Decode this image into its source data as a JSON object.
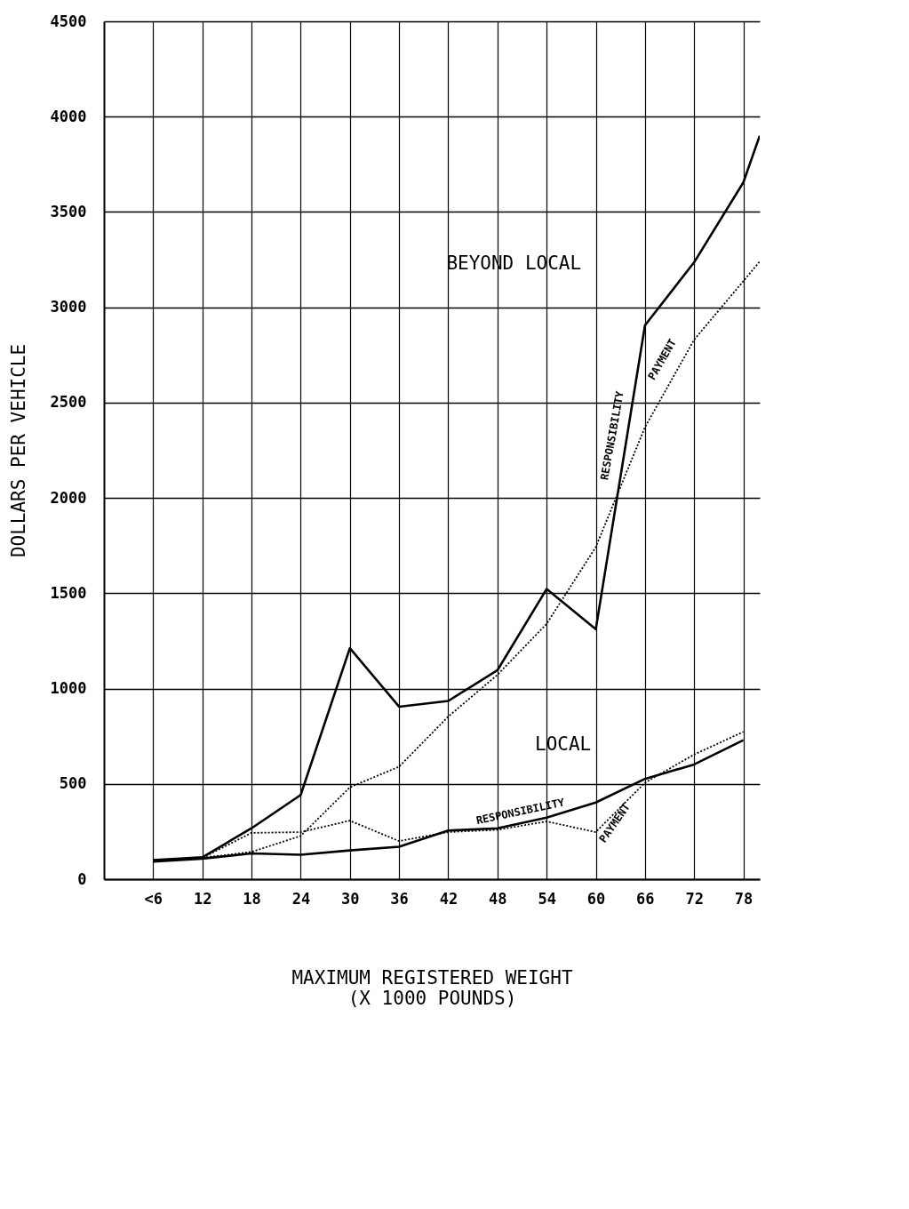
{
  "chart_data": {
    "type": "line",
    "xlabel": "MAXIMUM REGISTERED WEIGHT\n(X 1000 POUNDS)",
    "ylabel": "DOLLARS PER VEHICLE",
    "x": [
      6,
      12,
      18,
      24,
      30,
      36,
      42,
      48,
      54,
      60,
      66,
      72,
      78,
      80
    ],
    "series": [
      {
        "color": "#000000",
        "line_style": "solid",
        "values": [
          100,
          115,
          267,
          442,
          1212,
          905,
          935,
          1096,
          1522,
          1311,
          2905,
          3236,
          3655,
          3900
        ]
      },
      {
        "color": "#000000",
        "line_style": "dotted",
        "values": [
          100,
          112,
          143,
          227,
          482,
          590,
          853,
          1072,
          1339,
          1742,
          2371,
          2830,
          3137,
          3240
        ]
      },
      {
        "color": "#000000",
        "line_style": "solid",
        "x": [
          6,
          12,
          18,
          24,
          30,
          36,
          42,
          48,
          54,
          60,
          66,
          72,
          78
        ],
        "values": [
          92,
          108,
          135,
          128,
          151,
          170,
          255,
          267,
          323,
          402,
          526,
          602,
          729
        ]
      },
      {
        "color": "#000000",
        "line_style": "dotted",
        "x": [
          6,
          12,
          18,
          24,
          30,
          36,
          42,
          48,
          54,
          60,
          66,
          72,
          78
        ],
        "values": [
          100,
          112,
          243,
          247,
          307,
          200,
          247,
          259,
          303,
          247,
          506,
          654,
          773
        ]
      }
    ],
    "xlim": [
      0,
      80
    ],
    "ylim": [
      0,
      4500
    ],
    "xticks": [
      {
        "value": 6,
        "label": "<6"
      },
      12,
      18,
      24,
      30,
      36,
      42,
      48,
      54,
      60,
      66,
      72,
      78
    ],
    "yticks": [
      0,
      500,
      1000,
      1500,
      2000,
      2500,
      3000,
      3500,
      4000,
      4500
    ],
    "grid": true,
    "annotations": [
      "BEYOND LOCAL",
      "LOCAL",
      "RESPONSIBILITY",
      "PAYMENT",
      "RESPONSIBILITY",
      "PAYMENT"
    ]
  }
}
